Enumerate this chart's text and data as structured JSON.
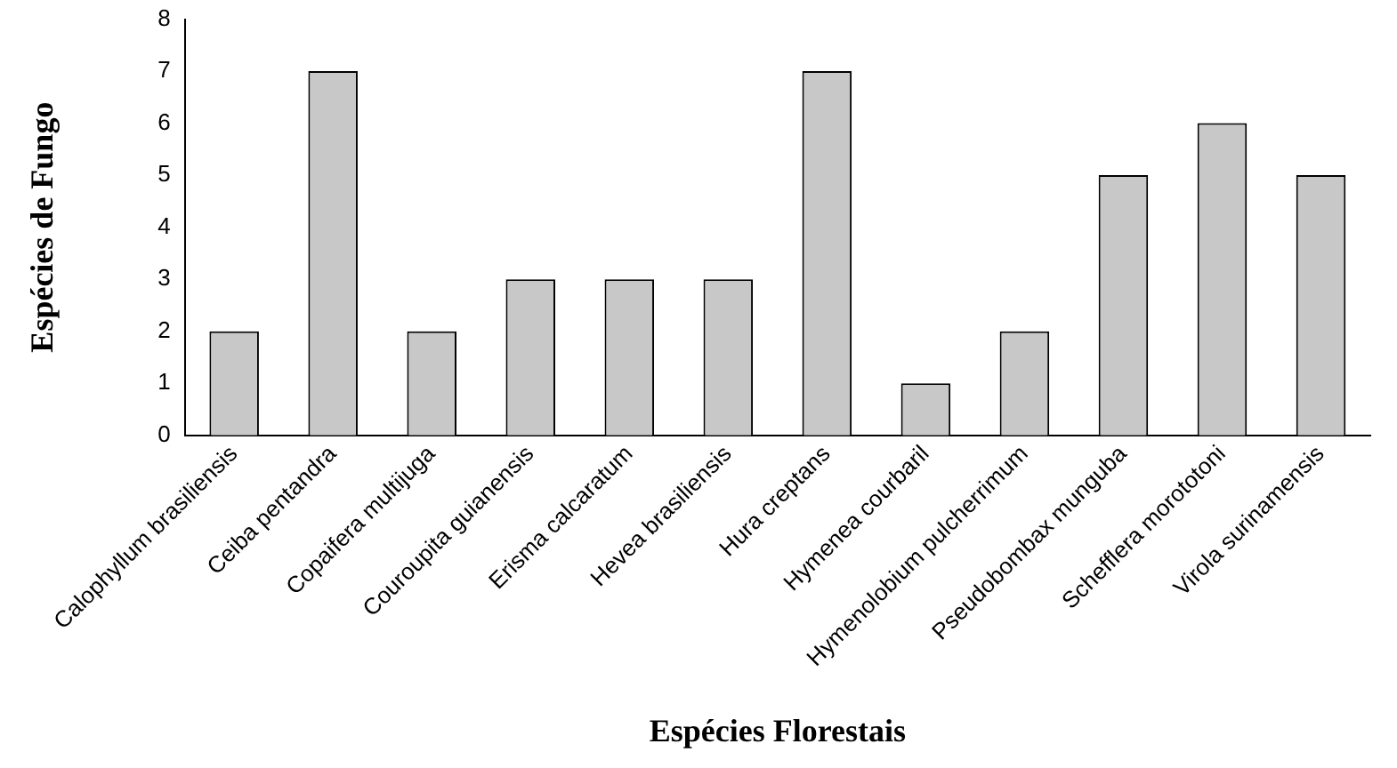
{
  "chart_data": {
    "type": "bar",
    "xlabel": "Espécies Florestais",
    "ylabel": "Espécies de Fungo",
    "categories": [
      "Calophyllum brasiliensis",
      "Ceiba pentandra",
      "Copaifera multijuga",
      "Couroupita guianensis",
      "Erisma calcaratum",
      "Hevea brasiliensis",
      "Hura creptans",
      "Hymenea courbaril",
      "Hymenolobium pulcherrimum",
      "Pseudobombax munguba",
      "Schefflera morototoni",
      "Virola surinamensis"
    ],
    "values": [
      2,
      7,
      2,
      3,
      3,
      3,
      7,
      1,
      2,
      5,
      6,
      5
    ],
    "color": "#c8c8c8",
    "ylim": [
      0,
      8
    ],
    "yticks": [
      0,
      1,
      2,
      3,
      4,
      5,
      6,
      7,
      8
    ],
    "grid": false,
    "legend": false
  }
}
